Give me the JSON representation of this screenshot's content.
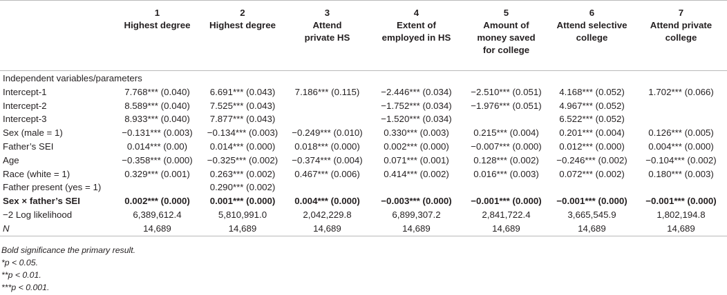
{
  "columns": [
    {
      "num": "1",
      "title": "Highest degree"
    },
    {
      "num": "2",
      "title": "Highest degree"
    },
    {
      "num": "3",
      "title": "Attend\nprivate HS"
    },
    {
      "num": "4",
      "title": "Extent of\nemployed in HS"
    },
    {
      "num": "5",
      "title": "Amount of\nmoney saved\nfor college"
    },
    {
      "num": "6",
      "title": "Attend selective\ncollege"
    },
    {
      "num": "7",
      "title": "Attend private\ncollege"
    }
  ],
  "section_label": "Independent variables/parameters",
  "rows": [
    {
      "label": "Intercept-1",
      "cells": [
        "7.768*** (0.040)",
        "6.691*** (0.043)",
        "7.186*** (0.115)",
        "−2.446*** (0.034)",
        "−2.510*** (0.051)",
        "4.168*** (0.052)",
        "1.702*** (0.066)"
      ]
    },
    {
      "label": "Intercept-2",
      "cells": [
        "8.589*** (0.040)",
        "7.525*** (0.043)",
        "",
        "−1.752*** (0.034)",
        "−1.976*** (0.051)",
        "4.967*** (0.052)",
        ""
      ]
    },
    {
      "label": "Intercept-3",
      "cells": [
        "8.933*** (0.040)",
        "7.877*** (0.043)",
        "",
        "−1.520*** (0.034)",
        "",
        "6.522*** (0.052)",
        ""
      ]
    },
    {
      "label": "Sex (male = 1)",
      "cells": [
        "−0.131*** (0.003)",
        "−0.134*** (0.003)",
        "−0.249*** (0.010)",
        "0.330*** (0.003)",
        "0.215*** (0.004)",
        "0.201*** (0.004)",
        "0.126*** (0.005)"
      ]
    },
    {
      "label": "Father’s SEI",
      "cells": [
        "0.014*** (0.00)",
        "0.014*** (0.000)",
        "0.018*** (0.000)",
        "0.002*** (0.000)",
        "−0.007*** (0.000)",
        "0.012*** (0.000)",
        "0.004*** (0.000)"
      ]
    },
    {
      "label": "Age",
      "cells": [
        "−0.358*** (0.000)",
        "−0.325*** (0.002)",
        "−0.374*** (0.004)",
        "0.071*** (0.001)",
        "0.128*** (0.002)",
        "−0.246*** (0.002)",
        "−0.104*** (0.002)"
      ]
    },
    {
      "label": "Race (white = 1)",
      "cells": [
        "0.329*** (0.001)",
        "0.263*** (0.002)",
        "0.467*** (0.006)",
        "0.414*** (0.002)",
        "0.016*** (0.003)",
        "0.072*** (0.002)",
        "0.180*** (0.003)"
      ]
    },
    {
      "label": "Father present (yes = 1)",
      "cells": [
        "",
        "0.290*** (0.002)",
        "",
        "",
        "",
        "",
        ""
      ]
    },
    {
      "label": "Sex × father’s SEI",
      "bold": true,
      "cells": [
        "0.002*** (0.000)",
        "0.001*** (0.000)",
        "0.004*** (0.000)",
        "−0.003*** (0.000)",
        "−0.001*** (0.000)",
        "−0.001*** (0.000)",
        "−0.001*** (0.000)"
      ]
    },
    {
      "label": "−2 Log likelihood",
      "cells": [
        "6,389,612.4",
        "5,810,991.0",
        "2,042,229.8",
        "6,899,307.2",
        "2,841,722.4",
        "3,665,545.9",
        "1,802,194.8"
      ]
    },
    {
      "label": "N",
      "italic_label": true,
      "cells": [
        "14,689",
        "14,689",
        "14,689",
        "14,689",
        "14,689",
        "14,689",
        "14,689"
      ]
    }
  ],
  "notes": [
    "Bold significance the primary result.",
    "*p < 0.05.",
    "**p < 0.01.",
    "***p < 0.001."
  ]
}
